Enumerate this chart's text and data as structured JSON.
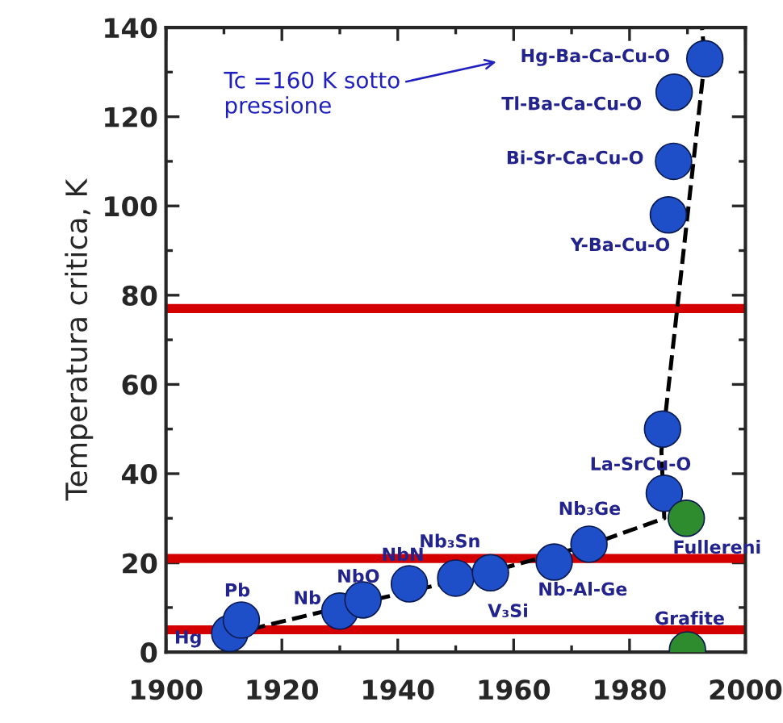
{
  "chart_data": {
    "type": "scatter",
    "ylabel": "Temperatura critica, K",
    "xlim": [
      1900,
      2000
    ],
    "ylim": [
      0,
      140
    ],
    "xticks": [
      1900,
      1920,
      1940,
      1960,
      1980,
      2000
    ],
    "yticks": [
      0,
      20,
      40,
      60,
      80,
      100,
      120,
      140
    ],
    "grid": false,
    "legend": false,
    "marker": "circle",
    "series": [
      {
        "color": "#1f4fc8",
        "x": [
          1911,
          1913,
          1930,
          1934,
          1942,
          1950,
          1956,
          1967,
          1973,
          1986,
          1985.7,
          1986.7,
          1987.6,
          1987.7,
          1993
        ],
        "values": [
          4.2,
          7.2,
          9.2,
          11.7,
          15.3,
          16.6,
          17.8,
          20.2,
          24.2,
          35.6,
          50,
          98,
          110,
          125.5,
          133
        ]
      },
      {
        "color": "#2e8b2e",
        "x": [
          1989.8,
          1990
        ],
        "values": [
          30,
          0.5
        ]
      },
      {
        "type": "line",
        "color": "#000000",
        "line_style": "dashed",
        "marker": "none",
        "x": [
          1911,
          1930,
          1950,
          1973,
          1986,
          1985.5,
          1993,
          1992.5
        ],
        "values": [
          4,
          10,
          16,
          24,
          30,
          45,
          133,
          140
        ]
      }
    ],
    "ref_lines": [
      {
        "axis": "y",
        "value": 5,
        "color": "#d40000"
      },
      {
        "axis": "y",
        "value": 21,
        "color": "#d40000"
      },
      {
        "axis": "y",
        "value": 77,
        "color": "#d40000"
      }
    ],
    "annotations": [
      "Tc =160 K sotto\npressione",
      {
        "text": "Hg",
        "x": 1911,
        "y": 4.2
      },
      {
        "text": "Pb",
        "x": 1913,
        "y": 7.2
      },
      {
        "text": "Nb",
        "x": 1930,
        "y": 9.2
      },
      {
        "text": "NbO",
        "x": 1934,
        "y": 11.7
      },
      {
        "text": "NbN",
        "x": 1942,
        "y": 15.3
      },
      {
        "text": "Nb₃Sn",
        "x": 1950,
        "y": 16.6
      },
      {
        "text": "V₃Si",
        "x": 1956,
        "y": 17.8
      },
      {
        "text": "Nb-Al-Ge",
        "x": 1967,
        "y": 20.2
      },
      {
        "text": "Nb₃Ge",
        "x": 1973,
        "y": 24.2
      },
      {
        "text": "La-SrCu-O",
        "x": 1986,
        "y": 35.6
      },
      {
        "text": "Fullereni",
        "x": 1989.8,
        "y": 30
      },
      {
        "text": "Grafite",
        "x": 1990,
        "y": 0.5
      },
      {
        "text": "Y-Ba-Cu-O",
        "x": 1986.7,
        "y": 98
      },
      {
        "text": "Bi-Sr-Ca-Cu-O",
        "x": 1987.6,
        "y": 110
      },
      {
        "text": "Tl-Ba-Ca-Cu-O",
        "x": 1987.7,
        "y": 125.5
      },
      {
        "text": "Hg-Ba-Ca-Cu-O",
        "x": 1993,
        "y": 133
      }
    ]
  }
}
